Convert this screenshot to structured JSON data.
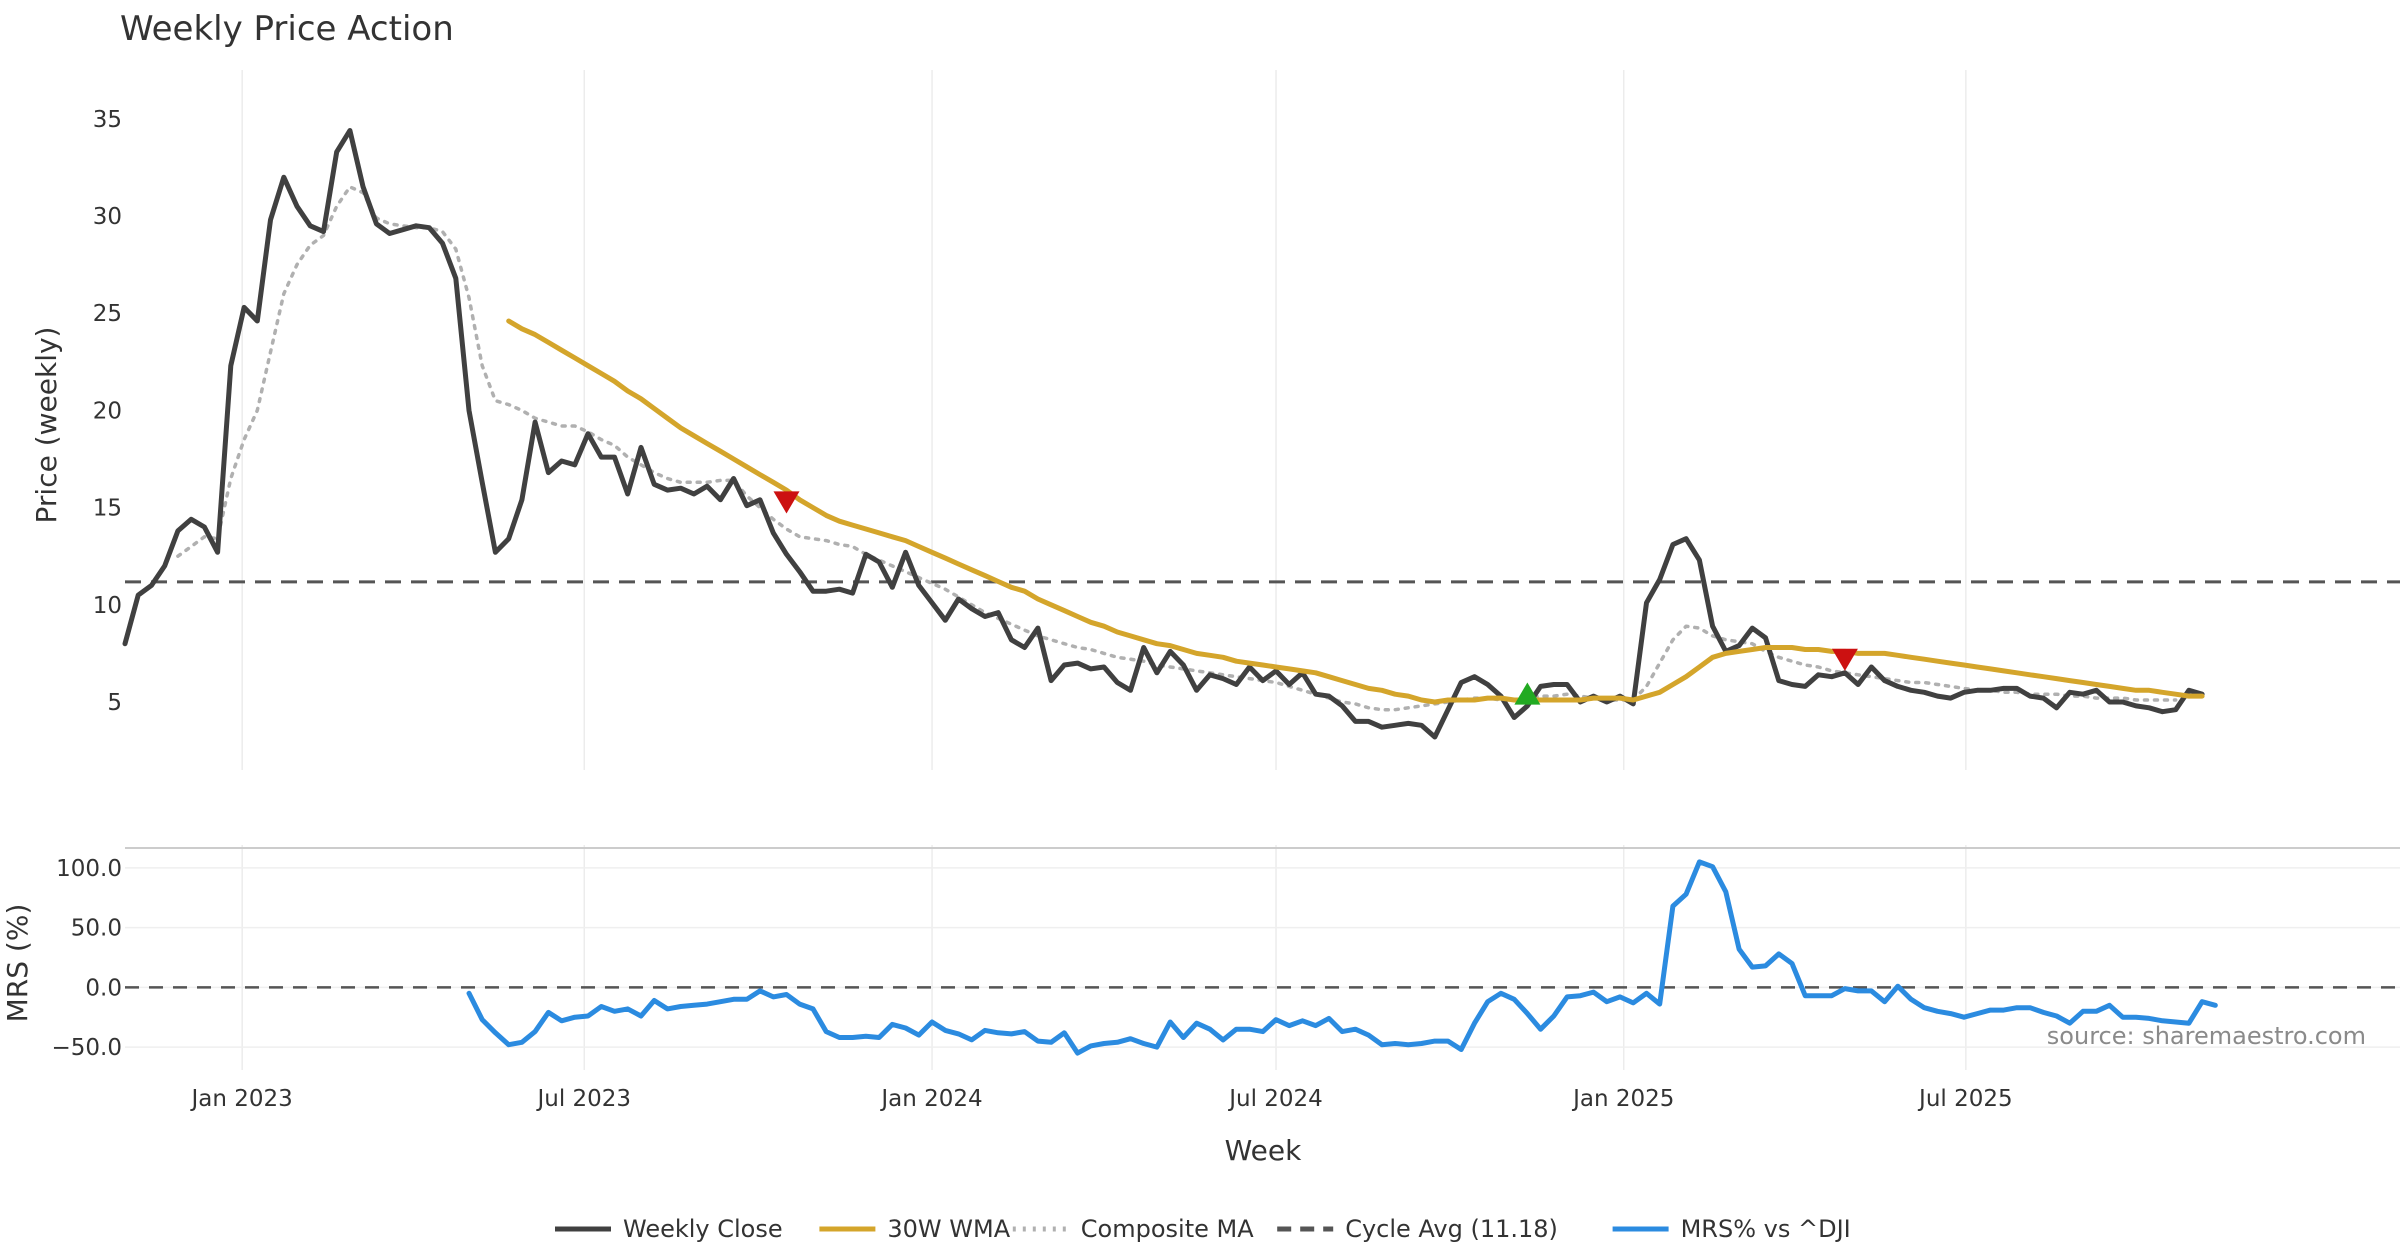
{
  "chart_data": [
    {
      "type": "line",
      "panel": "price",
      "title": "Weekly Price Action",
      "xlabel": "",
      "ylabel": "Price (weekly)",
      "ylim": [
        1.5,
        37
      ],
      "yticks": [
        5,
        10,
        15,
        20,
        25,
        30,
        35
      ],
      "grid": "vertical",
      "x_start": "2022-10-31",
      "x_step_weeks": 1,
      "series": [
        {
          "name": "Weekly Close",
          "color": "#404040",
          "style": "solid",
          "values": [
            8,
            10.5,
            11,
            12,
            13.8,
            14.4,
            14,
            12.7,
            22.3,
            25.3,
            24.6,
            29.8,
            32,
            30.5,
            29.5,
            29.2,
            33.3,
            34.4,
            31.5,
            29.6,
            29.1,
            29.3,
            29.5,
            29.4,
            28.6,
            26.8,
            20,
            16.3,
            12.7,
            13.4,
            15.4,
            19.4,
            16.8,
            17.4,
            17.2,
            18.8,
            17.6,
            17.6,
            15.7,
            18.1,
            16.2,
            15.9,
            16,
            15.7,
            16.1,
            15.4,
            16.5,
            15.1,
            15.4,
            13.7,
            12.6,
            11.7,
            10.7,
            10.7,
            10.8,
            10.6,
            12.6,
            12.2,
            10.9,
            12.7,
            11,
            10.1,
            9.2,
            10.3,
            9.8,
            9.4,
            9.6,
            8.2,
            7.8,
            8.8,
            6.1,
            6.9,
            7,
            6.7,
            6.8,
            6,
            5.6,
            7.8,
            6.5,
            7.6,
            6.9,
            5.6,
            6.4,
            6.2,
            5.9,
            6.8,
            6.1,
            6.6,
            5.9,
            6.5,
            5.4,
            5.3,
            4.8,
            4,
            4,
            3.7,
            3.8,
            3.9,
            3.8,
            3.2,
            4.6,
            6,
            6.3,
            5.9,
            5.3,
            4.2,
            4.8,
            5.8,
            5.9,
            5.9,
            5,
            5.3,
            5,
            5.3,
            4.9,
            10.1,
            11.3,
            13.1,
            13.4,
            12.3,
            8.9,
            7.6,
            7.9,
            8.8,
            8.3,
            6.1,
            5.9,
            5.8,
            6.4,
            6.3,
            6.5,
            5.9,
            6.8,
            6.1,
            5.8,
            5.6,
            5.5,
            5.3,
            5.2,
            5.5,
            5.6,
            5.6,
            5.7,
            5.7,
            5.3,
            5.2,
            4.7,
            5.5,
            5.4,
            5.6,
            5,
            5,
            4.8,
            4.7,
            4.5,
            4.6,
            5.6,
            5.4
          ]
        },
        {
          "name": "30W WMA",
          "color": "#d4a52b",
          "style": "solid",
          "values": [
            null,
            null,
            null,
            null,
            null,
            null,
            null,
            null,
            null,
            null,
            null,
            null,
            null,
            null,
            null,
            null,
            null,
            null,
            null,
            null,
            null,
            null,
            null,
            null,
            null,
            null,
            null,
            null,
            null,
            24.6,
            24.2,
            23.9,
            23.5,
            23.1,
            22.7,
            22.3,
            21.9,
            21.5,
            21,
            20.6,
            20.1,
            19.6,
            19.1,
            18.7,
            18.3,
            17.9,
            17.5,
            17.1,
            16.7,
            16.3,
            15.9,
            15.4,
            15,
            14.6,
            14.3,
            14.1,
            13.9,
            13.7,
            13.5,
            13.3,
            13,
            12.7,
            12.4,
            12.1,
            11.8,
            11.5,
            11.2,
            10.9,
            10.7,
            10.3,
            10,
            9.7,
            9.4,
            9.1,
            8.9,
            8.6,
            8.4,
            8.2,
            8,
            7.9,
            7.7,
            7.5,
            7.4,
            7.3,
            7.1,
            7,
            6.9,
            6.8,
            6.7,
            6.6,
            6.5,
            6.3,
            6.1,
            5.9,
            5.7,
            5.6,
            5.4,
            5.3,
            5.1,
            5,
            5.1,
            5.1,
            5.1,
            5.2,
            5.2,
            5.1,
            5.1,
            5.1,
            5.1,
            5.1,
            5.1,
            5.2,
            5.2,
            5.2,
            5.1,
            5.3,
            5.5,
            5.9,
            6.3,
            6.8,
            7.3,
            7.5,
            7.6,
            7.7,
            7.8,
            7.8,
            7.8,
            7.7,
            7.7,
            7.6,
            7.6,
            7.5,
            7.5,
            7.5,
            7.4,
            7.3,
            7.2,
            7.1,
            7,
            6.9,
            6.8,
            6.7,
            6.6,
            6.5,
            6.4,
            6.3,
            6.2,
            6.1,
            6,
            5.9,
            5.8,
            5.7,
            5.6,
            5.6,
            5.5,
            5.4,
            5.3,
            5.3
          ]
        },
        {
          "name": "Composite MA",
          "color": "#b0b0b0",
          "style": "dotted",
          "values": [
            null,
            null,
            null,
            null,
            12.5,
            13,
            13.5,
            13.4,
            16.5,
            18.5,
            20,
            23,
            26,
            27.5,
            28.5,
            29,
            30.5,
            31.5,
            31.2,
            29.9,
            29.6,
            29.5,
            29.4,
            29.4,
            29.2,
            28.3,
            25.8,
            22.3,
            20.5,
            20.3,
            20,
            19.6,
            19.4,
            19.2,
            19.2,
            18.9,
            18.5,
            18.2,
            17.6,
            17.2,
            16.8,
            16.5,
            16.3,
            16.3,
            16.3,
            16.4,
            16.4,
            15.6,
            15,
            14.4,
            13.9,
            13.5,
            13.4,
            13.3,
            13.1,
            13,
            12.6,
            12.3,
            12,
            11.7,
            11.4,
            11.1,
            10.8,
            10.4,
            10,
            9.6,
            9.3,
            9,
            8.7,
            8.4,
            8.2,
            8,
            7.8,
            7.7,
            7.5,
            7.3,
            7.2,
            7.1,
            6.9,
            6.8,
            6.7,
            6.6,
            6.5,
            6.4,
            6.3,
            6.2,
            6.1,
            6,
            5.8,
            5.6,
            5.4,
            5.2,
            5,
            4.9,
            4.7,
            4.6,
            4.6,
            4.7,
            4.8,
            4.9,
            5,
            5.1,
            5.2,
            5.2,
            5.1,
            5.1,
            5.2,
            5.3,
            5.3,
            5.4,
            5.3,
            5.2,
            5.1,
            5.1,
            5.1,
            5.8,
            7,
            8.2,
            8.9,
            8.8,
            8.4,
            8.2,
            8.1,
            8,
            7.6,
            7.3,
            7.1,
            6.9,
            6.8,
            6.6,
            6.5,
            6.4,
            6.3,
            6.2,
            6.1,
            6,
            6,
            5.9,
            5.8,
            5.7,
            5.6,
            5.6,
            5.5,
            5.5,
            5.4,
            5.4,
            5.4,
            5.3,
            5.3,
            5.2,
            5.2,
            5.2,
            5.1,
            5.1,
            5.1,
            5.1
          ]
        },
        {
          "name": "Cycle Avg (11.18)",
          "color": "#555555",
          "style": "dashed",
          "constant": 11.18
        }
      ],
      "markers": [
        {
          "type": "sell",
          "shape": "triangle-down",
          "color": "#cc1111",
          "week_index": 50,
          "value": 15.3
        },
        {
          "type": "buy",
          "shape": "triangle-up",
          "color": "#22aa22",
          "week_index": 106,
          "value": 5.4
        },
        {
          "type": "sell",
          "shape": "triangle-down",
          "color": "#cc1111",
          "week_index": 130,
          "value": 7.2
        }
      ]
    },
    {
      "type": "line",
      "panel": "mrs",
      "xlabel": "Week",
      "ylabel": "MRS (%)",
      "ylim": [
        -65,
        115
      ],
      "yticks": [
        -50,
        0,
        50,
        100
      ],
      "ytick_labels": [
        "−50.0",
        "0.0",
        "50.0",
        "100.0"
      ],
      "zero_line": "dashed",
      "x_tick_labels": [
        "Jan 2023",
        "Jul 2023",
        "Jan 2024",
        "Jul 2024",
        "Jan 2025",
        "Jul 2025"
      ],
      "x_tick_dates": [
        "2023-01-01",
        "2023-07-01",
        "2024-01-01",
        "2024-07-01",
        "2025-01-01",
        "2025-07-01"
      ],
      "series": [
        {
          "name": "MRS% vs ^DJI",
          "color": "#2b8be0",
          "style": "solid",
          "values": [
            null,
            null,
            null,
            null,
            null,
            null,
            null,
            null,
            null,
            null,
            null,
            null,
            null,
            null,
            null,
            null,
            null,
            null,
            null,
            null,
            null,
            null,
            null,
            null,
            null,
            null,
            -5,
            -27,
            -38,
            -48,
            -46,
            -37,
            -21,
            -28,
            -25,
            -24,
            -16,
            -20,
            -18,
            -24,
            -11,
            -18,
            -16,
            -15,
            -14,
            -12,
            -10,
            -10,
            -3,
            -8,
            -6,
            -14,
            -18,
            -37,
            -42,
            -42,
            -41,
            -42,
            -31,
            -34,
            -40,
            -29,
            -36,
            -39,
            -44,
            -36,
            -38,
            -39,
            -37,
            -45,
            -46,
            -38,
            -55,
            -49,
            -47,
            -46,
            -43,
            -47,
            -50,
            -29,
            -42,
            -30,
            -35,
            -44,
            -35,
            -35,
            -37,
            -27,
            -32,
            -28,
            -32,
            -26,
            -37,
            -35,
            -40,
            -48,
            -47,
            -48,
            -47,
            -45,
            -45,
            -52,
            -30,
            -12,
            -5,
            -10,
            -22,
            -35,
            -24,
            -8,
            -7,
            -4,
            -12,
            -8,
            -13,
            -5,
            -14,
            68,
            78,
            105,
            101,
            80,
            32,
            17,
            18,
            28,
            20,
            -7,
            -7,
            -7,
            -1,
            -3,
            -3,
            -12,
            1,
            -10,
            -17,
            -20,
            -22,
            -25,
            -22,
            -19,
            -19,
            -17,
            -17,
            -21,
            -24,
            -30,
            -20,
            -20,
            -15,
            -25,
            -25,
            -26,
            -28,
            -29,
            -30,
            -12,
            -15
          ]
        }
      ]
    }
  ],
  "source": "source: sharemaestro.com",
  "legend": {
    "placement": "bottom-center",
    "items": [
      {
        "label": "Weekly Close",
        "color": "#404040",
        "style": "solid"
      },
      {
        "label": "30W WMA",
        "color": "#d4a52b",
        "style": "solid"
      },
      {
        "label": "Composite MA",
        "color": "#b0b0b0",
        "style": "dotted"
      },
      {
        "label": "Cycle Avg (11.18)",
        "color": "#555555",
        "style": "dashed"
      },
      {
        "label": "MRS% vs ^DJI",
        "color": "#2b8be0",
        "style": "solid"
      }
    ]
  }
}
